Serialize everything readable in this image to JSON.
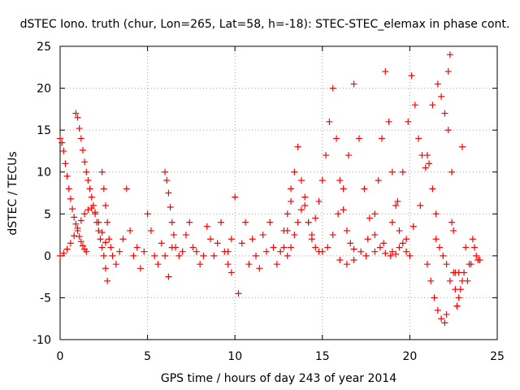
{
  "chart_data": {
    "type": "scatter",
    "title": "dSTEC Iono. truth (chur, Lon=265, Lat=58, h=-18): STEC-STEC_elemax in phase cont.",
    "xlabel": "GPS time / hours of day 243 of year 2014",
    "ylabel": "dSTEC  / TECUs",
    "xlim": [
      0,
      25
    ],
    "ylim": [
      -10,
      25
    ],
    "xticks": [
      0,
      5,
      10,
      15,
      20,
      25
    ],
    "yticks": [
      -10,
      -5,
      0,
      5,
      10,
      15,
      20,
      25
    ],
    "xtick_labels": [
      "0",
      "5",
      "10",
      "15",
      "20",
      "25"
    ],
    "ytick_labels": [
      "-10",
      "-5",
      "0",
      "5",
      "10",
      "15",
      "20",
      "25"
    ],
    "grid": true,
    "marker": "+",
    "colors": {
      "points": "#ff0000"
    },
    "series": [
      {
        "x": [
          0.0,
          0.1,
          0.2,
          0.3,
          0.4,
          0.5,
          0.6,
          0.7,
          0.8,
          0.9,
          1.0,
          1.1,
          1.2,
          1.3,
          1.4,
          1.5
        ],
        "y": [
          14.0,
          13.5,
          12.5,
          11.0,
          9.5,
          8.0,
          6.8,
          5.6,
          4.6,
          3.8,
          3.0,
          2.3,
          1.7,
          1.2,
          0.8,
          0.5
        ]
      },
      {
        "x": [
          0.9,
          1.0,
          1.1,
          1.2,
          1.3,
          1.4,
          1.5,
          1.6,
          1.7,
          1.8,
          1.9,
          2.0,
          2.1,
          2.2,
          2.3,
          2.4,
          2.5,
          2.6,
          2.7
        ],
        "y": [
          17.0,
          16.5,
          15.2,
          14.0,
          12.6,
          11.2,
          10.0,
          9.0,
          8.0,
          7.0,
          6.0,
          5.0,
          4.0,
          3.0,
          2.0,
          1.0,
          0.0,
          -1.5,
          -3.0
        ]
      },
      {
        "x": [
          0.0,
          0.2,
          0.4,
          0.6,
          0.8,
          1.0,
          1.2,
          1.4,
          1.6,
          1.8,
          2.0,
          2.2,
          2.4,
          2.6
        ],
        "y": [
          0.0,
          0.3,
          0.8,
          1.5,
          2.4,
          3.3,
          4.2,
          5.0,
          5.5,
          5.7,
          5.2,
          4.0,
          2.8,
          1.6
        ]
      },
      {
        "x": [
          2.4,
          2.5,
          2.6,
          2.7,
          2.8,
          2.9,
          3.0,
          3.2,
          3.4,
          3.6,
          3.8,
          4.0,
          4.2,
          4.4,
          4.6,
          4.8,
          5.0,
          5.2,
          5.4,
          5.6,
          5.8,
          6.0,
          6.2,
          6.4
        ],
        "y": [
          10.0,
          8.0,
          6.0,
          4.0,
          2.0,
          1.0,
          0.0,
          -1.0,
          0.5,
          2.0,
          8.0,
          3.0,
          0.0,
          1.0,
          -1.5,
          0.5,
          5.0,
          3.0,
          0.0,
          -1.0,
          1.5,
          0.0,
          -2.5,
          1.0
        ]
      },
      {
        "x": [
          6.0,
          6.1,
          6.2,
          6.3,
          6.4,
          6.5,
          6.6,
          6.8,
          7.0,
          7.2,
          7.4,
          7.6,
          7.8,
          8.0,
          8.2,
          8.4,
          8.6,
          8.8,
          9.0,
          9.2,
          9.4,
          9.6,
          9.8
        ],
        "y": [
          10.0,
          9.0,
          7.5,
          5.8,
          4.0,
          2.5,
          1.0,
          0.0,
          0.5,
          2.5,
          4.0,
          1.0,
          0.5,
          -1.0,
          0.0,
          3.5,
          2.0,
          0.0,
          1.5,
          4.0,
          0.5,
          -1.0,
          2.0
        ]
      },
      {
        "x": [
          9.6,
          9.8,
          10.0,
          10.2,
          10.4,
          10.6,
          10.8,
          11.0,
          11.2,
          11.4,
          11.6,
          11.8,
          12.0,
          12.2,
          12.4,
          12.6,
          12.8,
          13.0,
          13.2
        ],
        "y": [
          0.5,
          -2.0,
          7.0,
          -4.5,
          1.5,
          4.0,
          -1.0,
          2.0,
          0.0,
          -1.5,
          2.5,
          0.5,
          4.0,
          1.0,
          -1.0,
          0.5,
          3.0,
          5.0,
          8.0
        ]
      },
      {
        "x": [
          13.0,
          13.2,
          13.4,
          13.6,
          13.8,
          14.0,
          14.2,
          14.4,
          14.6,
          14.8,
          15.0,
          15.2,
          15.4,
          15.6,
          15.8,
          16.0,
          16.2,
          16.4,
          16.6,
          16.8
        ],
        "y": [
          0.0,
          1.0,
          2.5,
          4.0,
          5.5,
          7.0,
          4.0,
          2.5,
          4.5,
          6.5,
          9.0,
          12.0,
          16.0,
          20.0,
          14.0,
          9.0,
          5.5,
          3.0,
          1.5,
          0.8
        ]
      },
      {
        "x": [
          12.8,
          13.0,
          13.2,
          13.4,
          13.6,
          13.8,
          14.0,
          14.2,
          14.4,
          14.6,
          14.8
        ],
        "y": [
          1.0,
          3.0,
          6.5,
          10.0,
          13.0,
          9.0,
          6.0,
          4.0,
          2.0,
          1.0,
          0.5
        ]
      },
      {
        "x": [
          15.0,
          15.3,
          15.6,
          15.9,
          16.2,
          16.5,
          16.8,
          17.1,
          17.4,
          17.7,
          18.0,
          18.3,
          18.6,
          18.9,
          19.2
        ],
        "y": [
          0.5,
          1.0,
          2.5,
          5.0,
          8.0,
          12.0,
          20.5,
          14.0,
          8.0,
          4.5,
          2.5,
          1.0,
          0.3,
          0.0,
          0.2
        ]
      },
      {
        "x": [
          16.0,
          16.4,
          16.8,
          17.2,
          17.6,
          18.0,
          18.2,
          18.4,
          18.6,
          18.8,
          19.0,
          19.2,
          19.4,
          19.6,
          19.8,
          20.0
        ],
        "y": [
          -0.5,
          -1.0,
          -0.5,
          0.5,
          2.0,
          5.0,
          9.0,
          14.0,
          22.0,
          16.0,
          10.0,
          6.0,
          3.0,
          1.5,
          0.5,
          0.0
        ]
      },
      {
        "x": [
          17.5,
          18.0,
          18.5,
          19.0,
          19.3,
          19.6,
          19.9,
          20.1,
          20.3,
          20.5,
          20.7,
          20.9,
          21.1,
          21.3,
          21.5
        ],
        "y": [
          0.0,
          0.5,
          1.5,
          4.0,
          6.5,
          10.0,
          16.0,
          21.5,
          18.0,
          14.0,
          12.0,
          10.5,
          11.0,
          8.0,
          5.0
        ]
      },
      {
        "x": [
          19.0,
          19.4,
          19.8,
          20.2,
          20.6,
          21.0,
          21.3,
          21.6,
          21.8,
          22.0,
          22.2,
          22.4,
          22.6,
          22.8,
          23.0
        ],
        "y": [
          0.5,
          1.0,
          2.0,
          3.5,
          6.0,
          12.0,
          18.0,
          20.5,
          19.0,
          17.0,
          15.0,
          4.0,
          -2.0,
          -5.0,
          -3.0
        ]
      },
      {
        "x": [
          21.0,
          21.2,
          21.4,
          21.6,
          21.8,
          22.0,
          22.1,
          22.2,
          22.3,
          22.4,
          22.5,
          22.6,
          22.7,
          22.8,
          23.0,
          23.2,
          23.4,
          23.6,
          23.8,
          24.0
        ],
        "y": [
          -1.0,
          -3.0,
          -5.0,
          -6.5,
          -7.5,
          -8.0,
          -7.0,
          22.0,
          24.0,
          10.0,
          3.0,
          -4.0,
          -6.0,
          -2.0,
          13.0,
          1.0,
          -1.0,
          2.0,
          0.0,
          -0.5
        ]
      },
      {
        "x": [
          21.5,
          21.7,
          21.9,
          22.1,
          22.3,
          22.5,
          22.7,
          22.9,
          23.1,
          23.3,
          23.5,
          23.7,
          23.9
        ],
        "y": [
          2.0,
          1.0,
          0.0,
          -1.0,
          -3.0,
          -2.0,
          -6.0,
          -4.0,
          -2.0,
          -3.0,
          -1.0,
          1.0,
          -0.5
        ]
      }
    ]
  }
}
